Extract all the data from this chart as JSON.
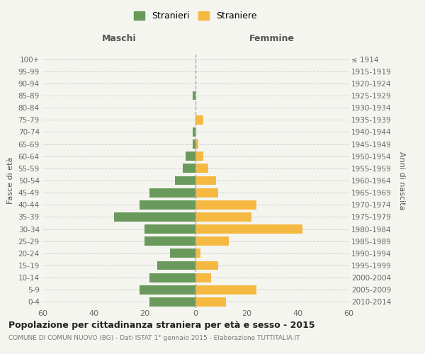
{
  "age_groups": [
    "0-4",
    "5-9",
    "10-14",
    "15-19",
    "20-24",
    "25-29",
    "30-34",
    "35-39",
    "40-44",
    "45-49",
    "50-54",
    "55-59",
    "60-64",
    "65-69",
    "70-74",
    "75-79",
    "80-84",
    "85-89",
    "90-94",
    "95-99",
    "100+"
  ],
  "birth_years": [
    "2010-2014",
    "2005-2009",
    "2000-2004",
    "1995-1999",
    "1990-1994",
    "1985-1989",
    "1980-1984",
    "1975-1979",
    "1970-1974",
    "1965-1969",
    "1960-1964",
    "1955-1959",
    "1950-1954",
    "1945-1949",
    "1940-1944",
    "1935-1939",
    "1930-1934",
    "1925-1929",
    "1920-1924",
    "1915-1919",
    "≤ 1914"
  ],
  "maschi": [
    18,
    22,
    18,
    15,
    10,
    20,
    20,
    32,
    22,
    18,
    8,
    5,
    4,
    1,
    1,
    0,
    0,
    1,
    0,
    0,
    0
  ],
  "femmine": [
    12,
    24,
    6,
    9,
    2,
    13,
    42,
    22,
    24,
    9,
    8,
    5,
    3,
    1,
    0,
    3,
    0,
    0,
    0,
    0,
    0
  ],
  "maschi_color": "#6a9a5b",
  "femmine_color": "#f5b942",
  "background_color": "#f5f5f0",
  "grid_color": "#cccccc",
  "title": "Popolazione per cittadinanza straniera per età e sesso - 2015",
  "subtitle": "COMUNE DI COMUN NUOVO (BG) - Dati ISTAT 1° gennaio 2015 - Elaborazione TUTTITALIA.IT",
  "ylabel_left": "Fasce di età",
  "ylabel_right": "Anni di nascita",
  "xlabel_left": "Maschi",
  "xlabel_right": "Femmine",
  "legend_maschi": "Stranieri",
  "legend_femmine": "Straniere",
  "xlim": 60,
  "center_line_color": "#aaaaaa"
}
